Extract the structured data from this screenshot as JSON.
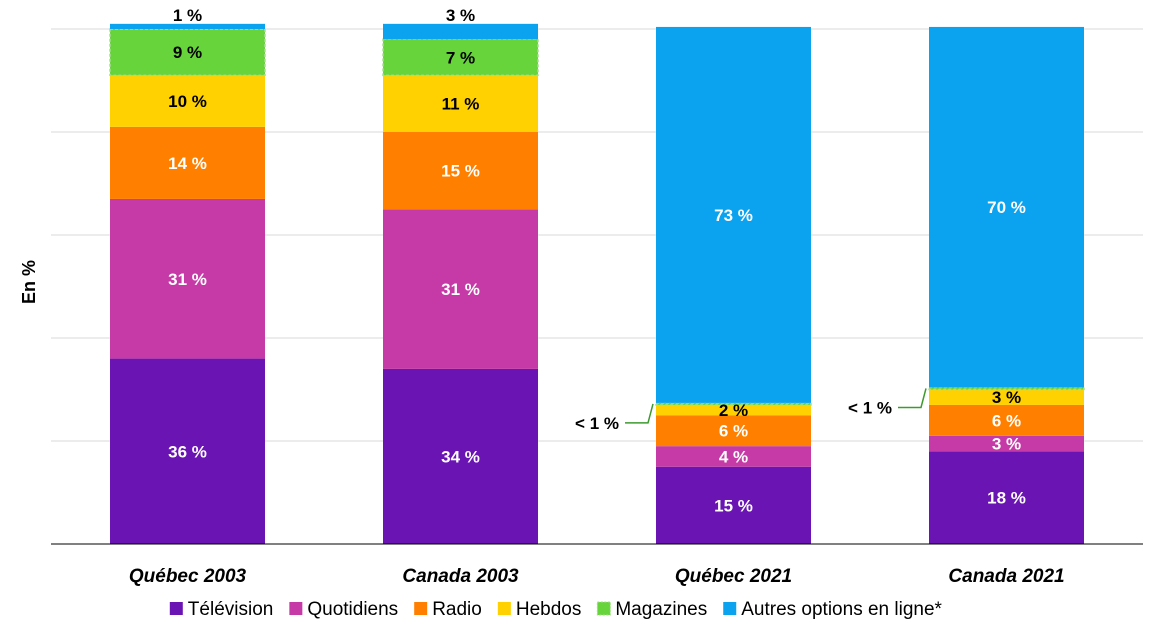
{
  "chart_data": {
    "type": "bar",
    "stacked": true,
    "ylabel": "En %",
    "ylim": [
      0,
      100
    ],
    "grid": true,
    "legend_position": "bottom",
    "categories": [
      "Québec 2003",
      "Canada 2003",
      "Québec 2021",
      "Canada 2021"
    ],
    "series": [
      {
        "name": "Télévision",
        "color": "#6a14b4",
        "values": [
          36,
          34,
          15,
          18
        ],
        "labels": [
          "36 %",
          "34 %",
          "15 %",
          "18 %"
        ],
        "label_color": "#ffffff"
      },
      {
        "name": "Quotidiens",
        "color": "#c53aa6",
        "values": [
          31,
          31,
          4,
          3
        ],
        "labels": [
          "31 %",
          "31 %",
          "4 %",
          "3 %"
        ],
        "label_color": "#ffffff"
      },
      {
        "name": "Radio",
        "color": "#ff8000",
        "values": [
          14,
          15,
          6,
          6
        ],
        "labels": [
          "14 %",
          "15 %",
          "6 %",
          "6 %"
        ],
        "label_color": "#ffffff"
      },
      {
        "name": "Hebdos",
        "color": "#ffd100",
        "values": [
          10,
          11,
          2,
          3
        ],
        "labels": [
          "10 %",
          "11 %",
          "2 %",
          "3 %"
        ],
        "label_color": "#000000"
      },
      {
        "name": "Magazines",
        "color": "#66d43a",
        "values": [
          9,
          7,
          0.4,
          0.4
        ],
        "labels": [
          "9 %",
          "7 %",
          "",
          ""
        ],
        "label_color": "#000000"
      },
      {
        "name": "Autres options en ligne*",
        "color": "#0ba2f0",
        "values": [
          1,
          3,
          73,
          70
        ],
        "labels": [
          "1 %",
          "3 %",
          "73 %",
          "70 %"
        ],
        "label_color": "#ffffff"
      }
    ],
    "callouts": [
      {
        "category": "Québec 2021",
        "series": "Magazines",
        "text": "< 1 %"
      },
      {
        "category": "Canada 2021",
        "series": "Magazines",
        "text": "< 1 %"
      }
    ]
  }
}
